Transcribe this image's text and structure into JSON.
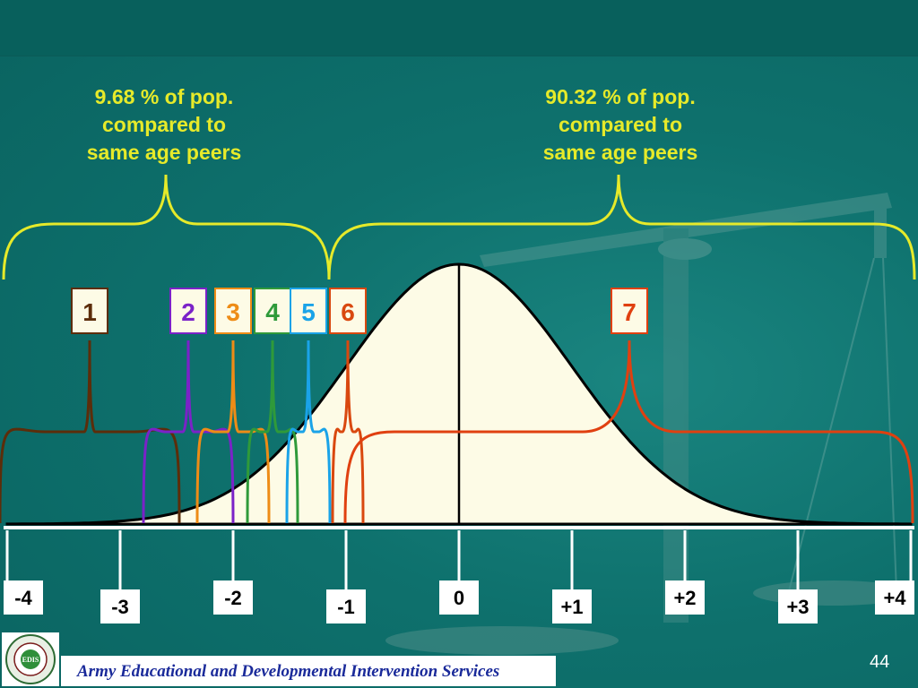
{
  "brackets": {
    "left_text": [
      "9.68 % of pop.",
      "compared to",
      "same age peers"
    ],
    "right_text": [
      "90.32 % of pop.",
      "compared to",
      "same age peers"
    ],
    "color": "#e6ea2a"
  },
  "markers": [
    {
      "label": "1",
      "color": "#5c2d0a",
      "z": -3.0
    },
    {
      "label": "2",
      "color": "#7b22c8",
      "z": -2.2
    },
    {
      "label": "3",
      "color": "#ee8c16",
      "z": -1.9
    },
    {
      "label": "4",
      "color": "#2f9a3a",
      "z": -1.6
    },
    {
      "label": "5",
      "color": "#1aa3e8",
      "z": -1.35
    },
    {
      "label": "6",
      "color": "#d9480f",
      "z": -1.1
    },
    {
      "label": "7",
      "color": "#e04010",
      "z": 1.5
    }
  ],
  "axis": {
    "ticks": [
      "-4",
      "-3",
      "-2",
      "-1",
      "0",
      "+1",
      "+2",
      "+3",
      "+4"
    ],
    "range": [
      -4,
      4
    ]
  },
  "curve_fill": "#fdfbe6",
  "footer": {
    "text": "Army Educational and Developmental Intervention Services"
  },
  "logo": {
    "name": "aedis-logo",
    "lettering": "EDIS"
  },
  "page_number": "44"
}
